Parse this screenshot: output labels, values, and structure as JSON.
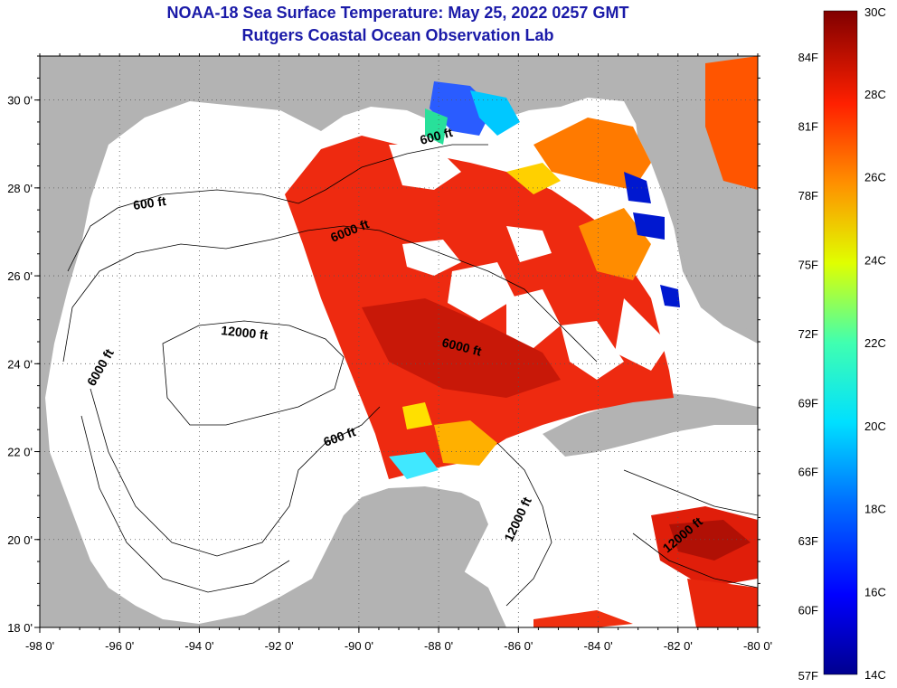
{
  "title": {
    "line1": "NOAA-18 Sea Surface Temperature:  May 25, 2022 0257 GMT",
    "line2": "Rutgers Coastal Ocean Observation Lab"
  },
  "axes": {
    "lon_ticks": [
      "-98 0'",
      "-96 0'",
      "-94 0'",
      "-92 0'",
      "-90 0'",
      "-88 0'",
      "-86 0'",
      "-84 0'",
      "-82 0'",
      "-80 0'"
    ],
    "lat_ticks": [
      "30 0'",
      "28 0'",
      "26 0'",
      "24 0'",
      "22 0'",
      "20 0'",
      "18 0'"
    ],
    "lon_range": [
      -98,
      -80
    ],
    "lat_range": [
      18,
      31
    ]
  },
  "contours": [
    "600 ft",
    "6000 ft",
    "12000 ft",
    "6000 ft",
    "600 ft",
    "6000 ft",
    "600 ft",
    "12000 ft",
    "12000 ft"
  ],
  "colorbar": {
    "celsius": [
      "30C",
      "28C",
      "26C",
      "24C",
      "22C",
      "20C",
      "18C",
      "16C",
      "14C"
    ],
    "fahrenheit": [
      "84F",
      "81F",
      "78F",
      "75F",
      "72F",
      "69F",
      "66F",
      "63F",
      "60F",
      "57F"
    ],
    "range_c": [
      14,
      30
    ]
  },
  "colors": {
    "title": "#1a1aa8",
    "land": "#b3b3b3",
    "no_data": "#ffffff"
  }
}
